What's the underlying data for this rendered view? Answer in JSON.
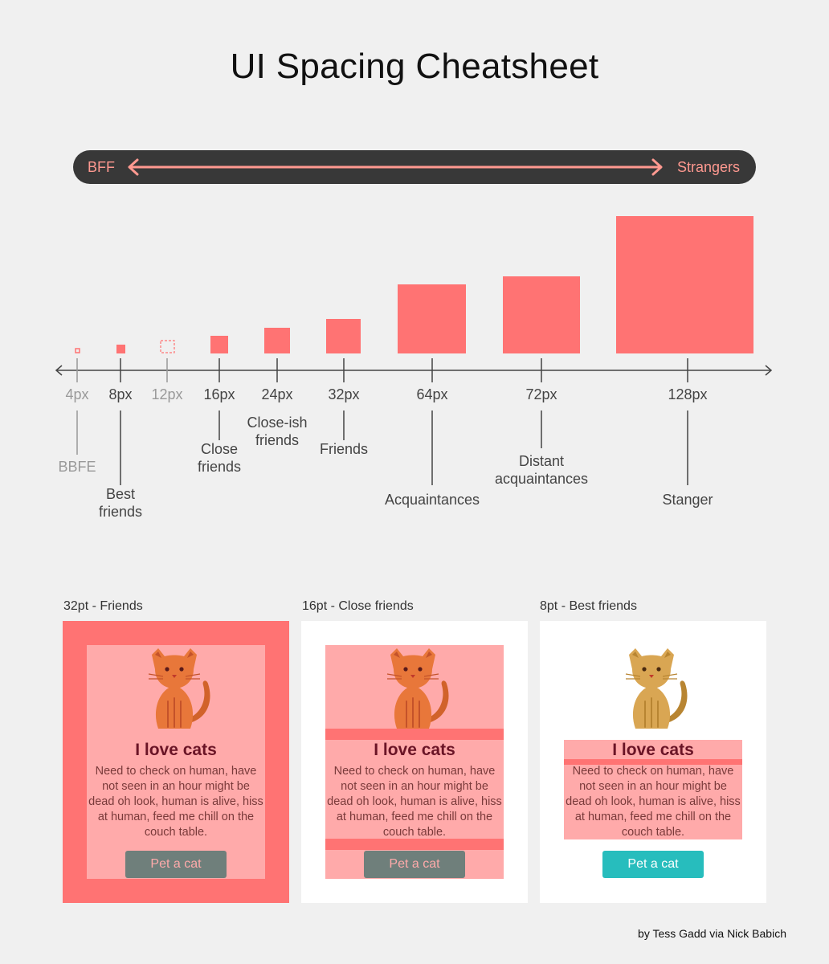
{
  "title": "UI Spacing Cheatsheet",
  "spectrum": {
    "left_label": "BFF",
    "right_label": "Strangers"
  },
  "colors": {
    "accent": "#ff7373",
    "accent_light": "#ffaaaa",
    "pill_bg": "#383838",
    "pill_text": "#ff9990",
    "button_gray": "#6f7f7b",
    "button_teal": "#27bdbd",
    "cat_orange": "#e8773a",
    "cat_tan": "#d9a653"
  },
  "scale": [
    {
      "value": "4px",
      "name": "BBFE",
      "muted": true
    },
    {
      "value": "8px",
      "name": "Best friends",
      "muted": false
    },
    {
      "value": "12px",
      "name": "",
      "muted": true
    },
    {
      "value": "16px",
      "name": "Close friends",
      "muted": false
    },
    {
      "value": "24px",
      "name": "Close-ish friends",
      "muted": false
    },
    {
      "value": "32px",
      "name": "Friends",
      "muted": false
    },
    {
      "value": "64px",
      "name": "Acquaintances",
      "muted": false
    },
    {
      "value": "72px",
      "name": "Distant acquaintances",
      "muted": false
    },
    {
      "value": "128px",
      "name": "Stanger",
      "muted": false
    }
  ],
  "labels": {
    "bbfe": "BBFE",
    "best_1": "Best",
    "best_2": "friends",
    "close_1": "Close",
    "close_2": "friends",
    "closeish_1": "Close-ish",
    "closeish_2": "friends",
    "friends": "Friends",
    "acq": "Acquaintances",
    "distant_1": "Distant",
    "distant_2": "acquaintances",
    "stranger": "Stanger"
  },
  "examples": [
    {
      "title": "32pt - Friends",
      "heading": "I love cats",
      "body_lines": [
        "Need to check on human, have",
        "not seen in an hour might be",
        "dead oh look, human is alive, hiss",
        "at human, feed me chill on the",
        "couch table."
      ],
      "button": "Pet a cat"
    },
    {
      "title": "16pt - Close friends",
      "heading": "I love cats",
      "body_lines": [
        "Need to check on human, have",
        "not seen in an hour might be",
        "dead oh look, human is alive, hiss",
        "at human, feed me chill on the",
        "couch table."
      ],
      "button": "Pet a cat"
    },
    {
      "title": "8pt - Best friends",
      "heading": "I love cats",
      "body_lines": [
        "Need to check on human, have",
        "not seen in an hour might be",
        "dead oh look, human is alive, hiss",
        "at human, feed me chill on the",
        "couch table."
      ],
      "button": "Pet a cat"
    }
  ],
  "credit": "by Tess Gadd via Nick Babich"
}
